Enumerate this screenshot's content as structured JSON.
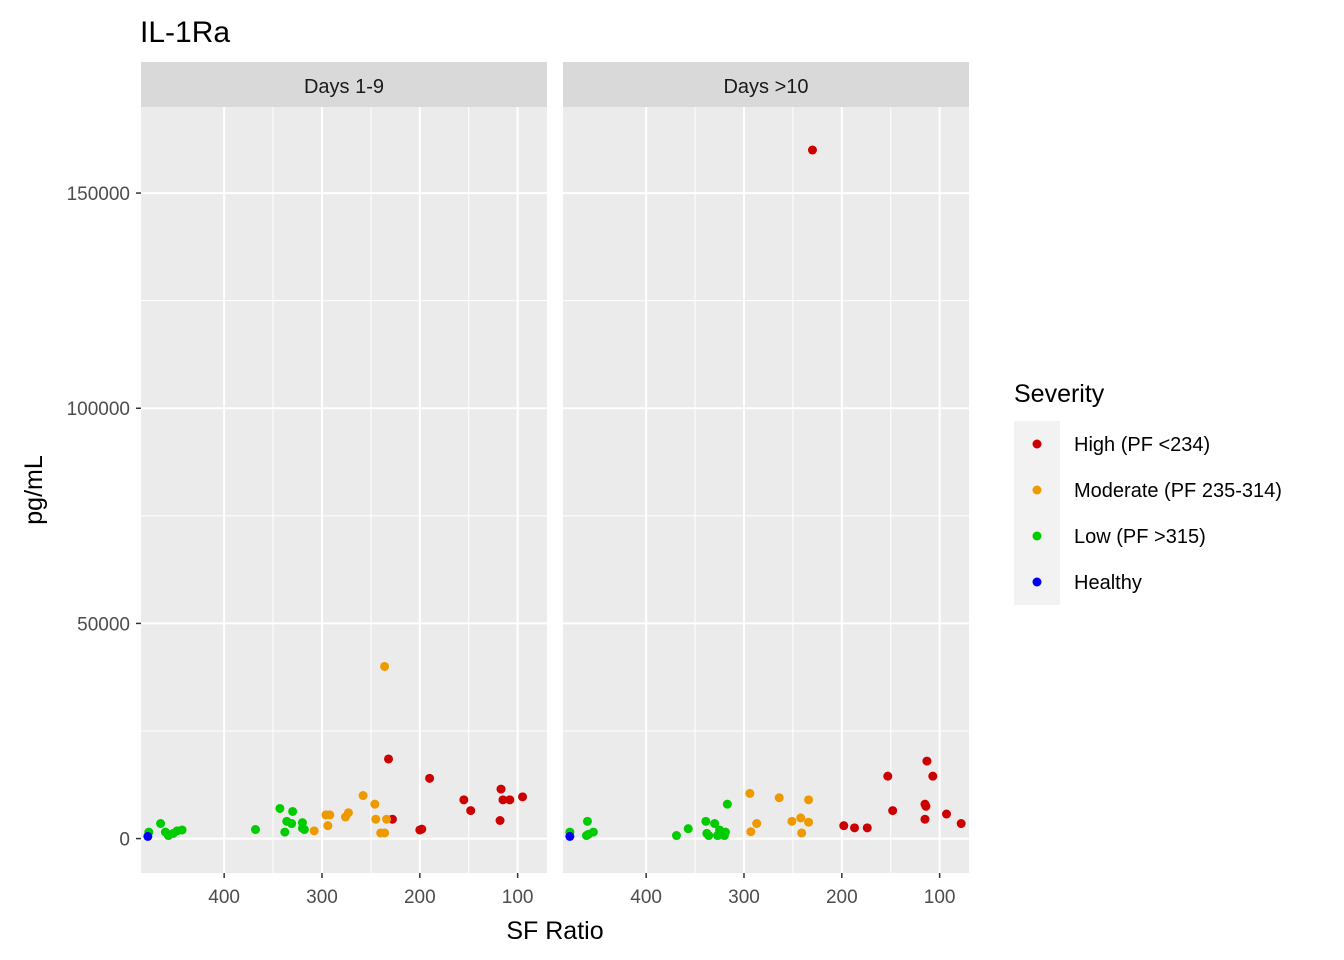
{
  "chart_data": {
    "type": "scatter",
    "title": "IL-1Ra",
    "xlabel": "SF Ratio",
    "ylabel": "pg/mL",
    "x_reversed": true,
    "xlim": [
      485,
      70
    ],
    "ylim": [
      -8000,
      170000
    ],
    "x_ticks": [
      400,
      300,
      200,
      100
    ],
    "y_ticks": [
      0,
      50000,
      100000,
      150000
    ],
    "x_tick_labels": [
      "400",
      "300",
      "200",
      "100"
    ],
    "y_tick_labels": [
      "0",
      "50000",
      "100000",
      "150000"
    ],
    "grid": true,
    "legend": {
      "title": "Severity",
      "placement": "right",
      "entries": [
        {
          "label": "High (PF <234)",
          "color": "#CC0000"
        },
        {
          "label": "Moderate (PF 235-314)",
          "color": "#EE9900"
        },
        {
          "label": "Low (PF >315)",
          "color": "#00CC00"
        },
        {
          "label": "Healthy",
          "color": "#0000EE"
        }
      ]
    },
    "panels": [
      {
        "label": "Days 1-9",
        "series": [
          {
            "name": "High (PF <234)",
            "points": [
              [
                232,
                18500
              ],
              [
                228,
                4500
              ],
              [
                190,
                14000
              ],
              [
                198,
                2200
              ],
              [
                200,
                2000
              ],
              [
                155,
                9000
              ],
              [
                148,
                6500
              ],
              [
                117,
                11500
              ],
              [
                115,
                9000
              ],
              [
                108,
                9000
              ],
              [
                118,
                4200
              ],
              [
                95,
                9700
              ]
            ]
          },
          {
            "name": "Moderate (PF 235-314)",
            "points": [
              [
                236,
                40000
              ],
              [
                258,
                10000
              ],
              [
                246,
                8000
              ],
              [
                292,
                5500
              ],
              [
                296,
                5500
              ],
              [
                273,
                6000
              ],
              [
                276,
                5000
              ],
              [
                234,
                4500
              ],
              [
                245,
                4500
              ],
              [
                240,
                1300
              ],
              [
                236,
                1300
              ],
              [
                294,
                3000
              ],
              [
                308,
                1800
              ]
            ]
          },
          {
            "name": "Low (PF >315)",
            "points": [
              [
                465,
                3500
              ],
              [
                460,
                1500
              ],
              [
                457,
                700
              ],
              [
                452,
                1200
              ],
              [
                448,
                1800
              ],
              [
                443,
                2000
              ],
              [
                477,
                1500
              ],
              [
                368,
                2100
              ],
              [
                343,
                7000
              ],
              [
                338,
                1500
              ],
              [
                336,
                4000
              ],
              [
                331,
                3500
              ],
              [
                330,
                6300
              ],
              [
                320,
                3700
              ],
              [
                320,
                2400
              ],
              [
                318,
                2100
              ]
            ]
          },
          {
            "name": "Healthy",
            "points": [
              [
                478,
                500
              ]
            ]
          }
        ]
      },
      {
        "label": "Days >10",
        "series": [
          {
            "name": "High (PF <234)",
            "points": [
              [
                230,
                160000
              ],
              [
                113,
                18000
              ],
              [
                153,
                14500
              ],
              [
                107,
                14500
              ],
              [
                115,
                8000
              ],
              [
                114,
                7500
              ],
              [
                148,
                6500
              ],
              [
                93,
                5700
              ],
              [
                115,
                4500
              ],
              [
                78,
                3500
              ],
              [
                198,
                3000
              ],
              [
                187,
                2500
              ],
              [
                174,
                2500
              ]
            ]
          },
          {
            "name": "Moderate (PF 235-314)",
            "points": [
              [
                294,
                10500
              ],
              [
                264,
                9500
              ],
              [
                234,
                9000
              ],
              [
                242,
                4800
              ],
              [
                251,
                4000
              ],
              [
                287,
                3500
              ],
              [
                234,
                3800
              ],
              [
                293,
                1600
              ],
              [
                241,
                1300
              ]
            ]
          },
          {
            "name": "Low (PF >315)",
            "points": [
              [
                460,
                4000
              ],
              [
                478,
                1500
              ],
              [
                459,
                1000
              ],
              [
                461,
                700
              ],
              [
                454,
                1500
              ],
              [
                369,
                700
              ],
              [
                357,
                2300
              ],
              [
                339,
                4000
              ],
              [
                330,
                3500
              ],
              [
                317,
                8000
              ],
              [
                338,
                1200
              ],
              [
                336,
                700
              ],
              [
                327,
                700
              ],
              [
                320,
                700
              ],
              [
                325,
                2000
              ],
              [
                319,
                1500
              ]
            ]
          },
          {
            "name": "Healthy",
            "points": [
              [
                478,
                500
              ]
            ]
          }
        ]
      }
    ]
  }
}
